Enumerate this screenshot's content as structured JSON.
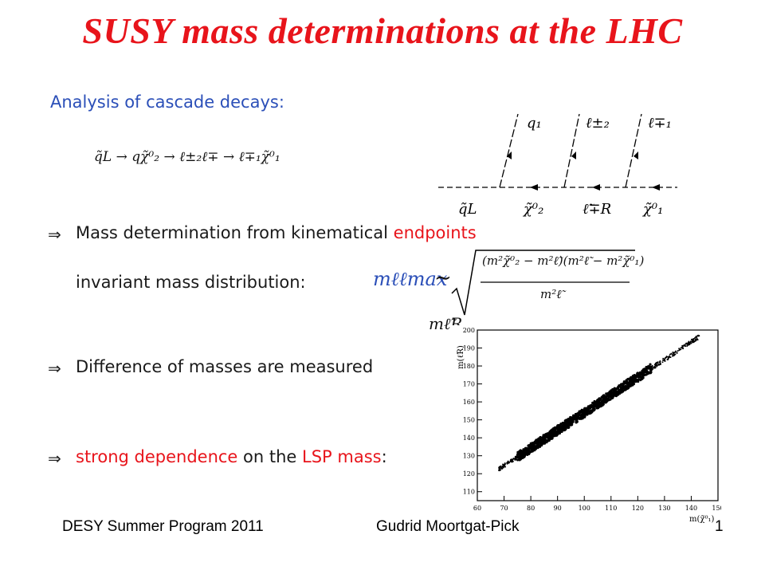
{
  "title": "SUSY mass determinations at the LHC",
  "section_heading": "Analysis of cascade decays:",
  "decay_chain": "q̃L → qχ̃⁰₂ → ℓ±₂ℓ∓ → ℓ∓₁χ̃⁰₁",
  "diagram": {
    "outgoing": [
      "q₁",
      "ℓ±₂",
      "ℓ∓₁"
    ],
    "propagators": [
      "q̃L",
      "χ̃⁰₂",
      "ℓ̃∓R",
      "χ̃⁰₁"
    ]
  },
  "bullets": [
    {
      "prefix": "Mass determination from kinematical ",
      "highlight": "endpoints"
    },
    {
      "text": "Difference of masses are measured"
    },
    {
      "highlight1": "strong dependence",
      "middle": " on the ",
      "highlight2": "LSP mass",
      "suffix": ":"
    }
  ],
  "invariant_label": "invariant mass distribution:",
  "formula": {
    "lhs": "mℓℓmax",
    "sim": "∼",
    "numerator": "(m²χ̃⁰₂ − m²ℓ̃)(m²ℓ̃ − m²χ̃⁰₁)",
    "denominator": "m²ℓ̃"
  },
  "plot_label": "mℓ̃R",
  "chart_data": {
    "type": "scatter",
    "xlabel": "m(χ̃⁰₁)",
    "ylabel": "m(ℓ̃R)",
    "xlim": [
      60,
      150
    ],
    "ylim": [
      105,
      200
    ],
    "xticks": [
      60,
      70,
      80,
      90,
      100,
      110,
      120,
      130,
      140,
      150
    ],
    "yticks": [
      110,
      120,
      130,
      140,
      150,
      160,
      170,
      180,
      190,
      200
    ],
    "band": {
      "x_start": 68,
      "x_end": 143,
      "slope": 0.985,
      "intercept": 55.5,
      "dense_range": [
        75,
        125
      ]
    }
  },
  "footer": {
    "left": "DESY Summer Program 2011",
    "center": "Gudrid Moortgat-Pick",
    "page": "1"
  }
}
